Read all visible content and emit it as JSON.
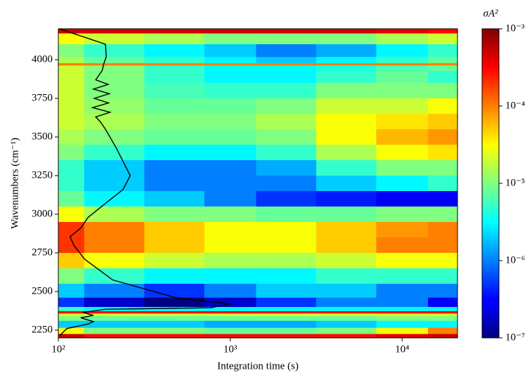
{
  "chart_data": {
    "type": "heatmap",
    "x_label": "Integration time (s)",
    "y_label": "Wavenumbers (cm⁻¹)",
    "colorbar_label": "σA²",
    "xscale": "log",
    "zscale": "log",
    "xlim": [
      100,
      21000
    ],
    "ylim": [
      2200,
      4200
    ],
    "zlim": [
      1e-07,
      0.001
    ],
    "xticks": [
      {
        "value": 100,
        "label": "10²"
      },
      {
        "value": 1000,
        "label": "10³"
      },
      {
        "value": 10000,
        "label": "10⁴"
      }
    ],
    "yticks": [
      2250,
      2500,
      2750,
      3000,
      3250,
      3500,
      3750,
      4000
    ],
    "zticks": [
      {
        "value": 1e-07,
        "label": "10⁻⁷"
      },
      {
        "value": 1e-06,
        "label": "10⁻⁶"
      },
      {
        "value": 1e-05,
        "label": "10⁻⁵"
      },
      {
        "value": 0.0001,
        "label": "10⁻⁴"
      },
      {
        "value": 0.001,
        "label": "10⁻³"
      }
    ],
    "colormap": "jet",
    "x": [
      100,
      200,
      500,
      1000,
      2000,
      5000,
      10000,
      20000
    ],
    "y": [
      4190,
      4150,
      4050,
      3985,
      3970,
      3955,
      3900,
      3800,
      3700,
      3600,
      3500,
      3400,
      3300,
      3200,
      3100,
      3000,
      2900,
      2800,
      2700,
      2600,
      2500,
      2420,
      2380,
      2365,
      2350,
      2330,
      2290,
      2240,
      2210
    ],
    "z": [
      [
        0.0005,
        0.0005,
        0.0005,
        0.0005,
        0.0005,
        0.0005,
        0.0004,
        0.0003
      ],
      [
        3e-05,
        2e-05,
        1.5e-05,
        1e-05,
        1e-05,
        1e-05,
        1.5e-05,
        2e-05
      ],
      [
        1e-05,
        5e-06,
        3e-06,
        2e-06,
        1e-06,
        1.5e-06,
        3e-06,
        5e-06
      ],
      [
        1.5e-05,
        8e-06,
        5e-06,
        3e-06,
        2e-06,
        3e-06,
        5e-06,
        8e-06
      ],
      [
        0.0001,
        0.0001,
        0.0001,
        0.0001,
        0.0001,
        0.0001,
        0.0001,
        0.0001
      ],
      [
        2e-05,
        1e-05,
        5e-06,
        3e-06,
        3e-06,
        4e-06,
        6e-06,
        8e-06
      ],
      [
        2e-05,
        1e-05,
        5e-06,
        3e-06,
        3e-06,
        5e-06,
        8e-06,
        5e-06
      ],
      [
        2e-05,
        1e-05,
        6e-06,
        5e-06,
        5e-06,
        1e-05,
        1e-05,
        1e-05
      ],
      [
        2e-05,
        1.2e-05,
        8e-06,
        8e-06,
        1e-05,
        2e-05,
        2e-05,
        3e-05
      ],
      [
        2e-05,
        1.5e-05,
        1e-05,
        1e-05,
        1.5e-05,
        3e-05,
        4e-05,
        5e-05
      ],
      [
        1.5e-05,
        1e-05,
        8e-06,
        8e-06,
        1e-05,
        3e-05,
        6e-05,
        8e-05
      ],
      [
        1e-05,
        5e-06,
        3e-06,
        3e-06,
        5e-06,
        1.5e-05,
        3e-05,
        4e-05
      ],
      [
        5e-06,
        2e-06,
        1e-06,
        1e-06,
        1.5e-06,
        5e-06,
        1e-05,
        1e-05
      ],
      [
        5e-06,
        2e-06,
        1e-06,
        1e-06,
        1e-06,
        2e-06,
        3e-06,
        5e-06
      ],
      [
        8e-06,
        3e-06,
        2e-06,
        1e-06,
        5e-07,
        4e-07,
        3e-07,
        3e-07
      ],
      [
        3e-05,
        1.5e-05,
        1e-05,
        1e-05,
        8e-06,
        8e-06,
        1e-05,
        1e-05
      ],
      [
        0.0002,
        0.0001,
        5e-05,
        3e-05,
        3e-05,
        5e-05,
        8e-05,
        0.0001
      ],
      [
        0.0002,
        0.0001,
        5e-05,
        3e-05,
        3e-05,
        5e-05,
        0.0001,
        0.0001
      ],
      [
        5e-05,
        3e-05,
        2e-05,
        1.5e-05,
        1.5e-05,
        2e-05,
        3e-05,
        3e-05
      ],
      [
        1e-05,
        5e-06,
        3e-06,
        3e-06,
        3e-06,
        5e-06,
        5e-06,
        5e-06
      ],
      [
        2e-06,
        1e-06,
        5e-07,
        1e-06,
        2e-06,
        2e-06,
        1e-06,
        1e-06
      ],
      [
        5e-07,
        2e-07,
        1e-07,
        2e-07,
        5e-07,
        1e-06,
        1e-06,
        3e-07
      ],
      [
        5e-06,
        3e-06,
        3e-06,
        3e-06,
        3e-06,
        3e-06,
        3e-06,
        3e-06
      ],
      [
        0.0003,
        0.0003,
        0.0003,
        0.0003,
        0.0003,
        0.0003,
        0.0003,
        0.0003
      ],
      [
        2e-05,
        2e-05,
        2e-05,
        2e-05,
        2e-05,
        2e-05,
        2e-05,
        2e-05
      ],
      [
        1e-05,
        8e-06,
        8e-06,
        8e-06,
        8e-06,
        8e-06,
        1e-05,
        1e-05
      ],
      [
        2e-06,
        2e-06,
        2e-06,
        1.5e-06,
        1.5e-06,
        2e-06,
        3e-06,
        3e-06
      ],
      [
        3e-05,
        1e-05,
        1e-05,
        8e-06,
        8e-06,
        1e-05,
        3e-05,
        0.0001
      ],
      [
        0.0005,
        0.0003,
        0.0003,
        0.0003,
        0.0003,
        0.0003,
        0.0004,
        0.0005
      ]
    ],
    "line": {
      "color": "#000000",
      "x": [
        101,
        130,
        188,
        190,
        184,
        180,
        165,
        195,
        160,
        198,
        162,
        196,
        158,
        200,
        165,
        175,
        188,
        217,
        262,
        238,
        188,
        149,
        135,
        117,
        123,
        142,
        207,
        482,
        1000,
        772,
        188,
        139,
        160,
        135,
        160,
        149,
        112,
        102
      ],
      "y": [
        4200,
        4160,
        4100,
        4020,
        3975,
        3930,
        3870,
        3840,
        3810,
        3780,
        3750,
        3720,
        3690,
        3660,
        3630,
        3600,
        3550,
        3430,
        3250,
        3160,
        3070,
        2980,
        2910,
        2855,
        2800,
        2710,
        2575,
        2460,
        2420,
        2395,
        2385,
        2365,
        2345,
        2330,
        2305,
        2290,
        2260,
        2215
      ]
    }
  }
}
